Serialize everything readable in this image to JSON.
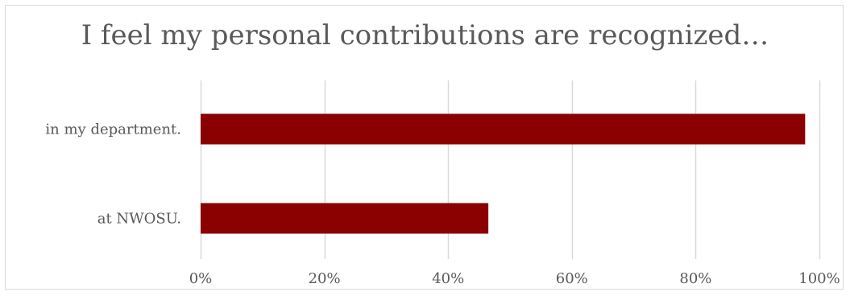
{
  "chart_data": {
    "type": "bar",
    "orientation": "horizontal",
    "title": "I feel my personal contributions are recognized…",
    "categories": [
      "in my department.",
      "at NWOSU."
    ],
    "values": [
      97.7,
      46.5
    ],
    "xlim": [
      0,
      100
    ],
    "x_ticks": [
      "0%",
      "20%",
      "40%",
      "60%",
      "80%",
      "100%"
    ],
    "grid": "vertical",
    "legend": "none",
    "bar_color": "#8b0000",
    "grid_color": "#d9d9d9"
  }
}
